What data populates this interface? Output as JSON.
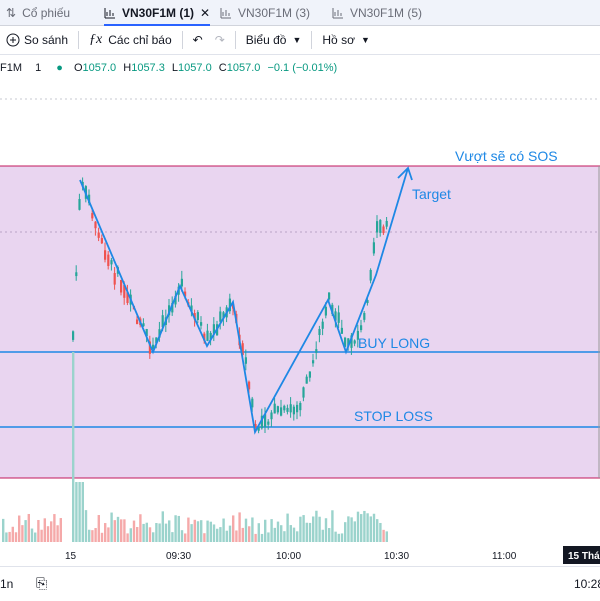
{
  "tabs": [
    {
      "icon": "sort-arrows-icon",
      "label": "Cổ phiếu",
      "active": false
    },
    {
      "icon": "chart-icon",
      "label": "VN30F1M (1)",
      "active": true,
      "close": "✕"
    },
    {
      "icon": "chart-icon",
      "label": "VN30F1M (3)",
      "active": false
    },
    {
      "icon": "chart-icon",
      "label": "VN30F1M (5)",
      "active": false
    }
  ],
  "toolbar": {
    "compare_label": "So sánh",
    "indicators_label": "Các chỉ báo",
    "chart_label": "Biểu đồ",
    "profile_label": "Hồ sơ"
  },
  "legend": {
    "symbol": "F1M",
    "interval": "1",
    "open_label": "O",
    "open": "1057.0",
    "high_label": "H",
    "high": "1057.3",
    "low_label": "L",
    "low": "1057.0",
    "close_label": "C",
    "close": "1057.0",
    "change": "−0.1 (−0.01%)"
  },
  "annotations": {
    "sos": "Vượt sẽ có SOS",
    "target": "Target",
    "buy_long": "BUY LONG",
    "stop_loss": "STOP LOSS"
  },
  "time_axis": {
    "labels": [
      "15",
      "09:30",
      "10:00",
      "10:30",
      "11:00"
    ],
    "date_badge": "15 Thá"
  },
  "bottom": {
    "left_label": "1n",
    "right_label": "10:28"
  },
  "colors": {
    "up": "#26a69a",
    "down": "#ef5350",
    "zone": "#e9d5f0",
    "zone_border": "#c2185b",
    "annotation": "#1e88e5",
    "accent": "#2962ff"
  }
}
